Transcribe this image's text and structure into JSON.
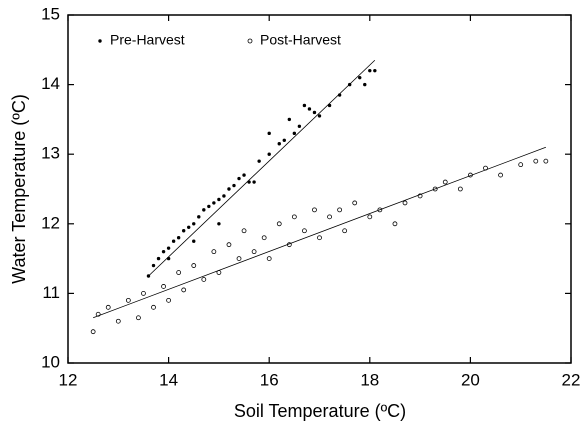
{
  "chart_data": {
    "type": "scatter",
    "xlabel": "Soil Temperature (ºC)",
    "ylabel": "Water Temperature (ºC)",
    "xlim": [
      12,
      22
    ],
    "xticks": [
      12,
      14,
      16,
      18,
      20,
      22
    ],
    "ylim": [
      10,
      15
    ],
    "yticks": [
      10,
      11,
      12,
      13,
      14,
      15
    ],
    "legend": "top-left",
    "series": [
      {
        "name": "Pre-Harvest",
        "color": "#000000",
        "marker": "filled",
        "x": [
          13.6,
          13.7,
          13.8,
          13.9,
          14.0,
          14.1,
          14.2,
          14.3,
          14.4,
          14.5,
          14.6,
          14.7,
          14.8,
          14.9,
          15.0,
          15.1,
          15.2,
          15.3,
          15.4,
          15.5,
          15.6,
          15.7,
          15.0,
          14.5,
          14.0,
          15.8,
          16.0,
          16.2,
          16.3,
          16.5,
          16.6,
          16.7,
          16.8,
          16.9,
          17.0,
          17.2,
          17.4,
          17.6,
          17.8,
          18.0,
          18.1,
          17.9,
          16.0,
          16.4
        ],
        "values": [
          11.25,
          11.4,
          11.5,
          11.6,
          11.65,
          11.75,
          11.8,
          11.9,
          11.95,
          12.0,
          12.1,
          12.2,
          12.25,
          12.3,
          12.35,
          12.4,
          12.5,
          12.55,
          12.65,
          12.7,
          12.6,
          12.6,
          12.0,
          11.75,
          11.5,
          12.9,
          13.0,
          13.15,
          13.2,
          13.3,
          13.4,
          13.7,
          13.65,
          13.6,
          13.55,
          13.7,
          13.85,
          14.0,
          14.1,
          14.2,
          14.2,
          14.0,
          13.3,
          13.5
        ],
        "fit_x": [
          13.6,
          18.1
        ],
        "fit_y": [
          11.25,
          14.35
        ]
      },
      {
        "name": "Post-Harvest",
        "color": "#000000",
        "marker": "open",
        "x": [
          12.5,
          12.6,
          12.8,
          13.0,
          13.2,
          13.4,
          13.5,
          13.7,
          13.9,
          14.0,
          14.2,
          14.3,
          14.5,
          14.7,
          14.9,
          15.0,
          15.2,
          15.4,
          15.5,
          15.7,
          15.9,
          16.0,
          16.2,
          16.4,
          16.5,
          16.7,
          16.9,
          17.0,
          17.2,
          17.4,
          17.5,
          17.7,
          18.0,
          18.2,
          18.5,
          18.7,
          19.0,
          19.3,
          19.5,
          19.8,
          20.0,
          20.3,
          20.6,
          21.0,
          21.3,
          21.5
        ],
        "values": [
          10.45,
          10.7,
          10.8,
          10.6,
          10.9,
          10.65,
          11.0,
          10.8,
          11.1,
          10.9,
          11.3,
          11.05,
          11.4,
          11.2,
          11.6,
          11.3,
          11.7,
          11.5,
          11.9,
          11.6,
          11.8,
          11.5,
          12.0,
          11.7,
          12.1,
          11.9,
          12.2,
          11.8,
          12.1,
          12.2,
          11.9,
          12.3,
          12.1,
          12.2,
          12.0,
          12.3,
          12.4,
          12.5,
          12.6,
          12.5,
          12.7,
          12.8,
          12.7,
          12.85,
          12.9,
          12.9
        ],
        "fit_x": [
          12.5,
          21.5
        ],
        "fit_y": [
          10.65,
          13.1
        ]
      }
    ]
  }
}
